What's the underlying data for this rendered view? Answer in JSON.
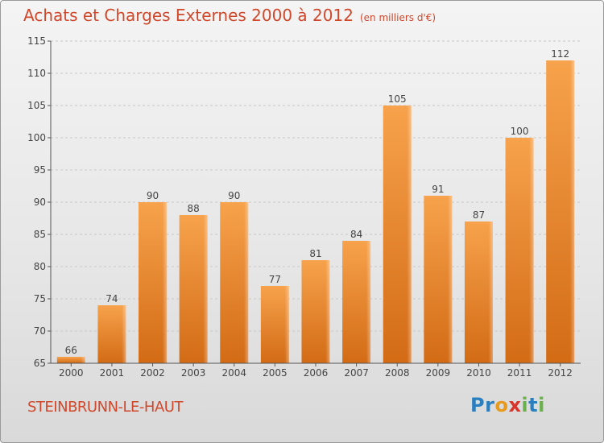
{
  "chart_data": {
    "type": "bar",
    "title": "Achats et Charges Externes 2000 à 2012",
    "unit_label": "(en milliers d'€)",
    "categories": [
      "2000",
      "2001",
      "2002",
      "2003",
      "2004",
      "2005",
      "2006",
      "2007",
      "2008",
      "2009",
      "2010",
      "2011",
      "2012"
    ],
    "values": [
      66,
      74,
      90,
      88,
      90,
      77,
      81,
      84,
      105,
      91,
      87,
      100,
      112
    ],
    "ylim": [
      65,
      115
    ],
    "yticks": [
      65,
      70,
      75,
      80,
      85,
      90,
      95,
      100,
      105,
      110,
      115
    ],
    "grid": true,
    "bar_color": "#e8822c"
  },
  "location": "STEINBRUNN-LE-HAUT",
  "logo": {
    "letters": [
      "P",
      "r",
      "o",
      "x",
      "i",
      "t",
      "i"
    ],
    "colors": [
      "#2a7fc1",
      "#2a7fc1",
      "#e79a1b",
      "#d8342a",
      "#6ab04c",
      "#2a7fc1",
      "#6ab04c"
    ]
  },
  "colors": {
    "title": "#d0482c",
    "axis": "#555555"
  }
}
